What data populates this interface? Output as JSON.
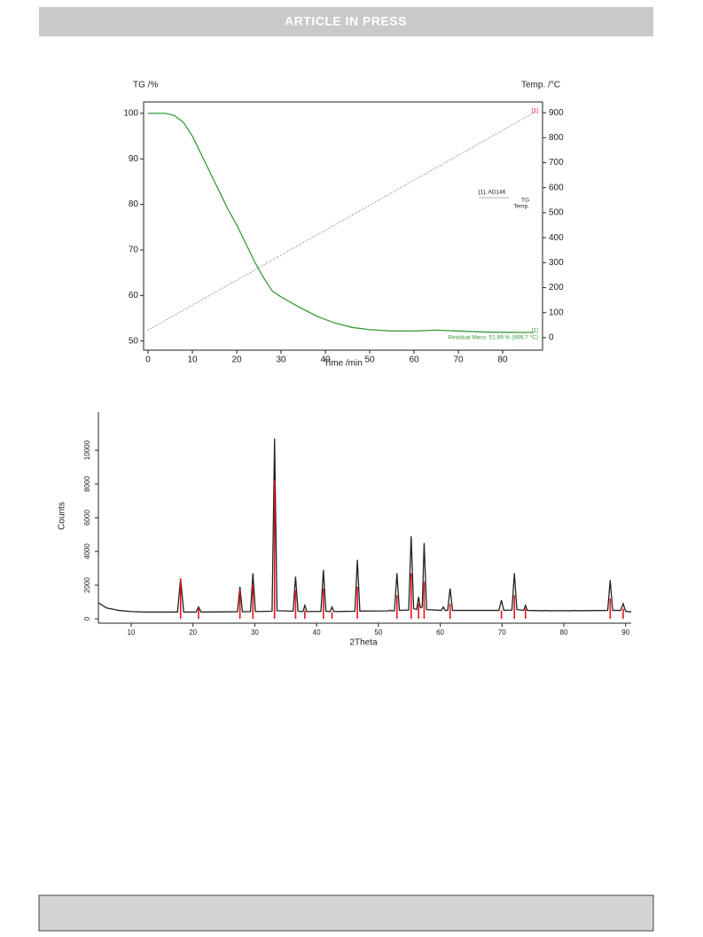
{
  "header": {
    "title": "ARTICLE IN PRESS"
  },
  "chart_data": [
    {
      "type": "line",
      "y_label": "TG /%",
      "y2_label": "Temp. /°C",
      "x_label": "Time /min",
      "xlim": [
        -1,
        89
      ],
      "xticks": [
        0,
        10,
        20,
        30,
        40,
        50,
        60,
        70,
        80
      ],
      "ylim": [
        48,
        102.5
      ],
      "yticks": [
        50,
        60,
        70,
        80,
        90,
        100
      ],
      "y2lim": [
        -50,
        943
      ],
      "y2ticks": [
        0,
        100,
        200,
        300,
        400,
        500,
        600,
        700,
        800,
        900
      ],
      "frame": true,
      "legend_title": "[1], AD146",
      "annotations": [
        "[1]",
        "[1]",
        "Residual Mass: 51.89 % (899.7 °C)"
      ],
      "series": [
        {
          "name": "TG",
          "color": "#3a9a3a",
          "style": "solid",
          "x": [
            0,
            4,
            6,
            8,
            10,
            12,
            14,
            16,
            18,
            20,
            22,
            24,
            26,
            28,
            30,
            34,
            38,
            42,
            46,
            50,
            55,
            60,
            65,
            70,
            75,
            80,
            87
          ],
          "values": [
            100,
            100,
            99.5,
            98,
            95,
            91,
            87,
            83,
            79,
            75.5,
            71.5,
            67.5,
            64,
            61,
            59.7,
            57.5,
            55.5,
            54,
            53,
            52.5,
            52.2,
            52.2,
            52.4,
            52.2,
            52,
            51.9,
            51.89
          ]
        },
        {
          "name": "Temp.",
          "color": "#555555",
          "style": "dotted",
          "axis": "y2",
          "x": [
            0,
            87
          ],
          "values": [
            30,
            899.7
          ]
        }
      ]
    },
    {
      "type": "line",
      "y_label": "Counts",
      "x_label": "2Theta",
      "xlim": [
        4.7,
        90.9
      ],
      "xticks": [
        10,
        20,
        30,
        40,
        50,
        60,
        70,
        80,
        90
      ],
      "ylim": [
        -260,
        12260
      ],
      "yticks": [
        0,
        2000,
        4000,
        6000,
        8000,
        10000
      ],
      "frame": false,
      "series": [
        {
          "color": "#222222",
          "style": "solid",
          "x": [
            4.7,
            6,
            8,
            10,
            12,
            17.5,
            18,
            18.5,
            20.5,
            20.9,
            21.3,
            27.2,
            27.6,
            28,
            29.3,
            29.7,
            30.1,
            32.8,
            33.2,
            33.6,
            36.2,
            36.6,
            37,
            37.8,
            38.1,
            38.4,
            40.7,
            41.1,
            41.5,
            42.2,
            42.5,
            42.8,
            46.2,
            46.6,
            47,
            51.5,
            51.8,
            52.1,
            52.6,
            53,
            53.4,
            54.9,
            55.3,
            55.7,
            56.2,
            56.5,
            56.8,
            57.1,
            57.4,
            57.8,
            60.2,
            60.5,
            60.8,
            61.2,
            61.6,
            62,
            69.5,
            69.9,
            70.3,
            71.6,
            72,
            72.4,
            73.5,
            73.8,
            74.1,
            76.7,
            77,
            77.3,
            81.5,
            81.8,
            82.1,
            87.1,
            87.5,
            87.9,
            89.2,
            89.6,
            90,
            90.9
          ],
          "values": [
            950,
            650,
            500,
            430,
            400,
            400,
            2400,
            400,
            400,
            700,
            400,
            420,
            1900,
            420,
            430,
            2700,
            430,
            450,
            10700,
            480,
            450,
            2500,
            450,
            430,
            800,
            430,
            440,
            2900,
            450,
            430,
            700,
            430,
            450,
            3500,
            460,
            470,
            500,
            480,
            480,
            2700,
            500,
            520,
            4900,
            600,
            550,
            1300,
            650,
            700,
            4500,
            550,
            500,
            700,
            500,
            500,
            1800,
            500,
            500,
            1100,
            500,
            520,
            2700,
            550,
            500,
            800,
            500,
            480,
            500,
            480,
            480,
            500,
            480,
            500,
            2300,
            500,
            500,
            900,
            450,
            400
          ]
        },
        {
          "color": "#e8141b",
          "style": "stem",
          "x": [
            18,
            20.9,
            27.6,
            29.7,
            33.2,
            36.6,
            38.1,
            41.1,
            42.5,
            46.6,
            53,
            55.3,
            56.5,
            57.4,
            61.6,
            69.9,
            72,
            73.8,
            87.5,
            89.6
          ],
          "values": [
            2400,
            600,
            1700,
            2000,
            8200,
            1700,
            500,
            1800,
            400,
            1900,
            1400,
            2700,
            900,
            2200,
            900,
            500,
            1400,
            600,
            1200,
            600
          ]
        }
      ]
    }
  ]
}
